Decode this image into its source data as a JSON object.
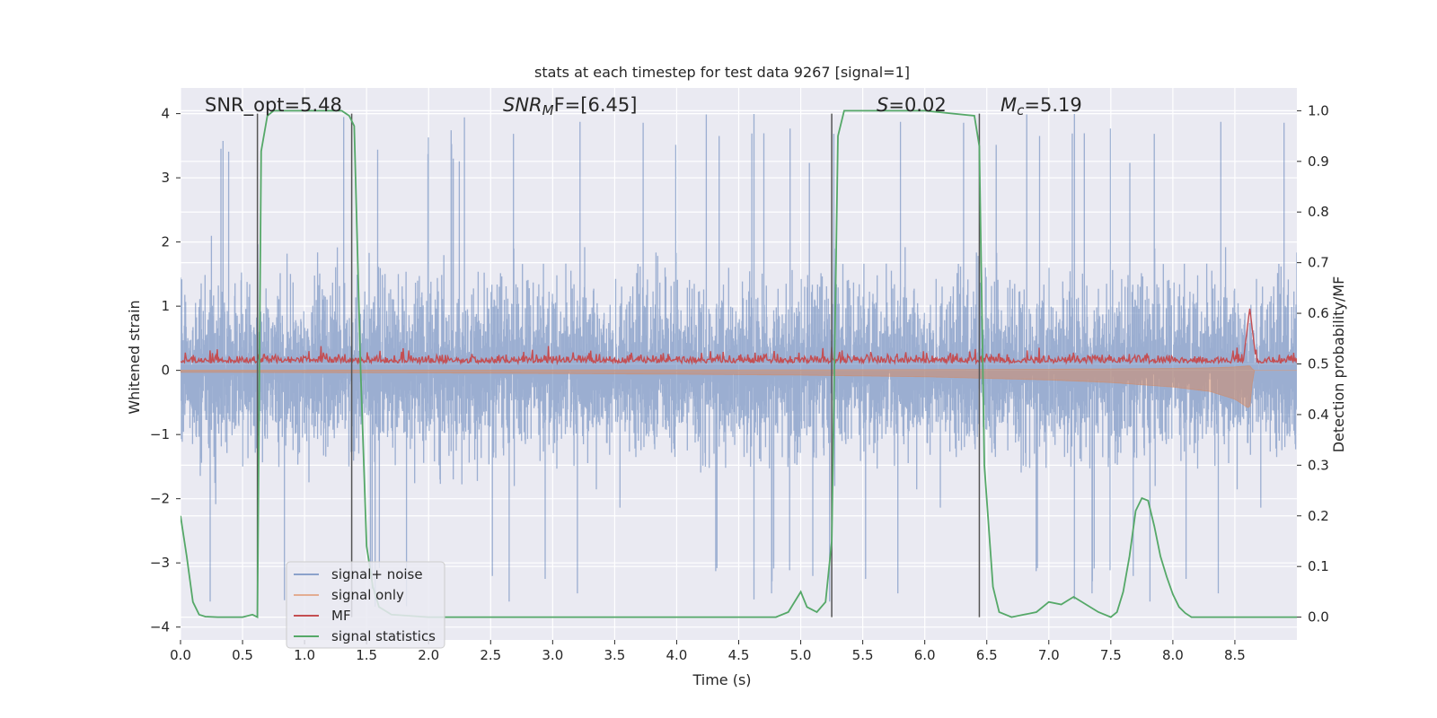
{
  "chart_data": {
    "type": "line",
    "title": "stats at each timestep for test data 9267 [signal=1]",
    "xlabel": "Time (s)",
    "ylabel": "Whitened strain",
    "y2label": "Detection probability/MF",
    "xlim": [
      0,
      9.0
    ],
    "ylim": [
      -4.2,
      4.4
    ],
    "y2lim": [
      -0.045,
      1.045
    ],
    "xticks": [
      0.0,
      0.5,
      1.0,
      1.5,
      2.0,
      2.5,
      3.0,
      3.5,
      4.0,
      4.5,
      5.0,
      5.5,
      6.0,
      6.5,
      7.0,
      7.5,
      8.0,
      8.5
    ],
    "xtick_labels": [
      "0.0",
      "0.5",
      "1.0",
      "1.5",
      "2.0",
      "2.5",
      "3.0",
      "3.5",
      "4.0",
      "4.5",
      "5.0",
      "5.5",
      "6.0",
      "6.5",
      "7.0",
      "7.5",
      "8.0",
      "8.5"
    ],
    "yticks": [
      4,
      3,
      2,
      1,
      0,
      -1,
      -2,
      -3,
      -4
    ],
    "ytick_labels": [
      "4",
      "3",
      "2",
      "1",
      "0",
      "−1",
      "−2",
      "−3",
      "−4"
    ],
    "y2ticks": [
      1.0,
      0.9,
      0.8,
      0.7,
      0.6,
      0.5,
      0.4,
      0.3,
      0.2,
      0.1,
      0.0
    ],
    "y2tick_labels": [
      "1.0",
      "0.9",
      "0.8",
      "0.7",
      "0.6",
      "0.5",
      "0.4",
      "0.3",
      "0.2",
      "0.1",
      "0.0"
    ],
    "annotations": {
      "snr_opt": "SNR_opt=5.48",
      "snr_mf_label": "SNR",
      "snr_mf_sub": "M",
      "snr_mf_rest": "F=[6.45]",
      "s_label": "S",
      "s_value": "=0.02",
      "mc_label": "M",
      "mc_sub": "c",
      "mc_value": "=5.19"
    },
    "vertical_lines": [
      0.62,
      1.38,
      5.25,
      6.44
    ],
    "legend": {
      "placement": "lower-left",
      "entries": [
        "signal+ noise",
        "signal only",
        "MF",
        "signal statistics"
      ]
    },
    "series": [
      {
        "name": "signal+ noise",
        "axis": "left",
        "color": "#4c72b0",
        "style": "dense noise band",
        "description": "whitened strain noise, amplitude mostly within ±2 with peaks to 4.0 and troughs to -3.7"
      },
      {
        "name": "signal only",
        "axis": "left",
        "color": "#dd8452",
        "style": "chirp envelope",
        "x": [
          0.0,
          1.0,
          2.0,
          3.0,
          4.0,
          5.0,
          6.0,
          7.0,
          7.5,
          8.0,
          8.3,
          8.5,
          8.62,
          8.65
        ],
        "amplitude": [
          0.03,
          0.035,
          0.04,
          0.05,
          0.06,
          0.075,
          0.1,
          0.15,
          0.19,
          0.26,
          0.33,
          0.45,
          0.6,
          0.0
        ]
      },
      {
        "name": "MF",
        "axis": "right",
        "color": "#c44e52",
        "style": "noisy matched-filter output",
        "baseline_range": [
          0.5,
          0.54
        ],
        "peaks": [
          {
            "x": 8.62,
            "y": 0.61
          }
        ]
      },
      {
        "name": "signal statistics",
        "axis": "right",
        "color": "#55a868",
        "x": [
          0.0,
          0.05,
          0.1,
          0.15,
          0.2,
          0.3,
          0.4,
          0.5,
          0.58,
          0.62,
          0.65,
          0.7,
          0.75,
          0.8,
          1.0,
          1.2,
          1.3,
          1.36,
          1.4,
          1.45,
          1.5,
          1.55,
          1.6,
          1.7,
          2.0,
          3.0,
          4.0,
          4.8,
          4.9,
          5.0,
          5.05,
          5.13,
          5.2,
          5.25,
          5.3,
          5.35,
          6.0,
          6.4,
          6.44,
          6.48,
          6.55,
          6.6,
          6.7,
          6.8,
          6.9,
          7.0,
          7.1,
          7.2,
          7.3,
          7.4,
          7.5,
          7.55,
          7.6,
          7.65,
          7.7,
          7.75,
          7.8,
          7.85,
          7.9,
          7.95,
          8.0,
          8.05,
          8.1,
          8.15,
          8.2,
          8.3,
          8.5,
          9.0
        ],
        "y": [
          0.2,
          0.12,
          0.03,
          0.005,
          0.001,
          0.0,
          0.0,
          0.0,
          0.005,
          0.0,
          0.92,
          0.99,
          1.0,
          1.0,
          1.0,
          1.0,
          1.0,
          0.99,
          0.97,
          0.5,
          0.14,
          0.06,
          0.02,
          0.005,
          0.0,
          0.0,
          0.0,
          0.0,
          0.01,
          0.05,
          0.02,
          0.01,
          0.03,
          0.15,
          0.95,
          1.0,
          1.0,
          0.99,
          0.93,
          0.3,
          0.06,
          0.01,
          0.0,
          0.005,
          0.01,
          0.03,
          0.025,
          0.04,
          0.025,
          0.01,
          0.0,
          0.01,
          0.05,
          0.12,
          0.21,
          0.235,
          0.23,
          0.18,
          0.12,
          0.08,
          0.045,
          0.02,
          0.008,
          0.0,
          0.0,
          0.0,
          0.0,
          0.0
        ]
      }
    ]
  }
}
